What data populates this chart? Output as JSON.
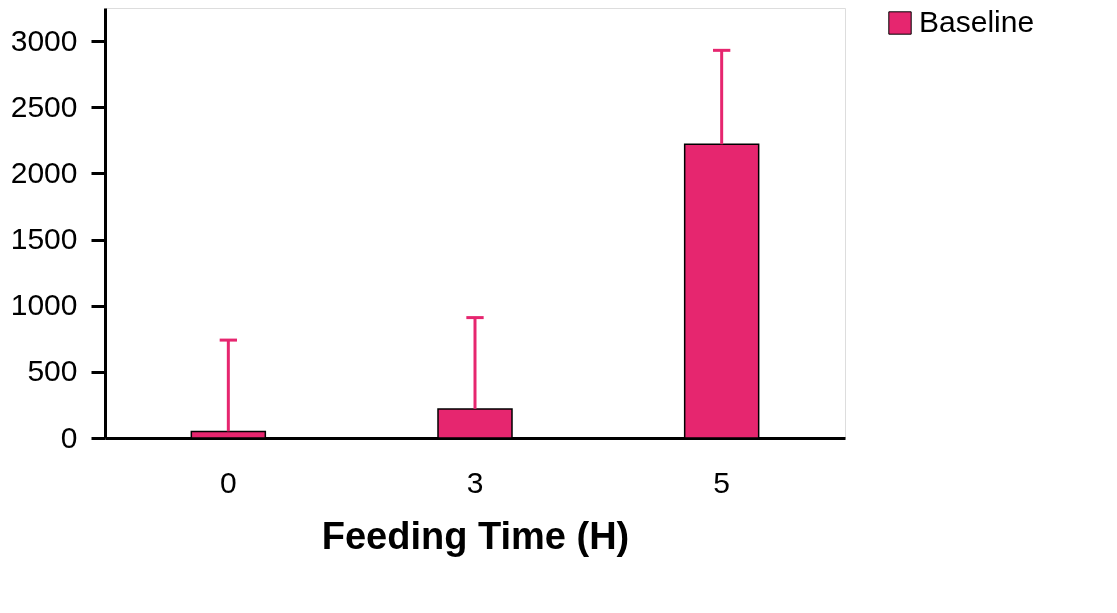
{
  "chart_data": {
    "type": "bar",
    "xlabel": "Feeding Time (H)",
    "categories": [
      "0",
      "3",
      "5"
    ],
    "series": [
      {
        "name": "Baseline",
        "color": "#e6266f",
        "values": [
          50,
          220,
          2220
        ],
        "errors": [
          [
            50,
            740
          ],
          [
            220,
            910
          ],
          [
            2220,
            2930
          ]
        ]
      }
    ],
    "ylim": [
      0,
      3250
    ],
    "yticks": [
      0,
      500,
      1000,
      1500,
      2000,
      2500,
      3000
    ],
    "grid": false,
    "legend": "right"
  }
}
